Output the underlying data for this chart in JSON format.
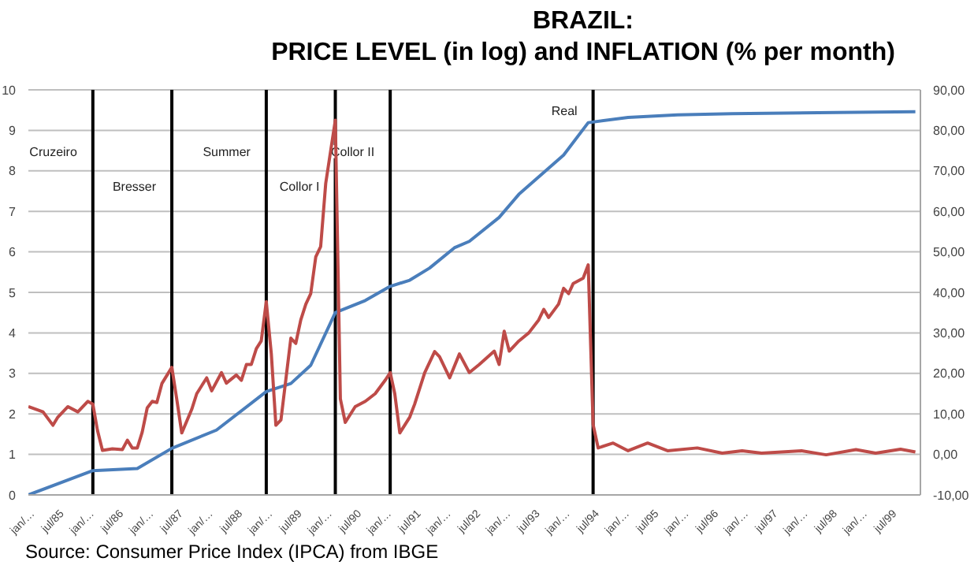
{
  "chart_data": {
    "type": "line",
    "title": "BRAZIL:",
    "subtitle": "PRICE LEVEL (in log) and INFLATION (% per month)",
    "annotations": [
      "Source: Consumer Price Index (IPCA) from IBGE"
    ],
    "xlim": [
      "1985-01",
      "2000-01"
    ],
    "xticks": [
      {
        "value": "1985-01",
        "label": "jan/…"
      },
      {
        "value": "1985-07",
        "label": "jul/85"
      },
      {
        "value": "1986-01",
        "label": "jan/…"
      },
      {
        "value": "1986-07",
        "label": "jul/86"
      },
      {
        "value": "1987-01",
        "label": "jan/…"
      },
      {
        "value": "1987-07",
        "label": "jul/87"
      },
      {
        "value": "1988-01",
        "label": "jan/…"
      },
      {
        "value": "1988-07",
        "label": "jul/88"
      },
      {
        "value": "1989-01",
        "label": "jan/…"
      },
      {
        "value": "1989-07",
        "label": "jul/89"
      },
      {
        "value": "1990-01",
        "label": "jan/…"
      },
      {
        "value": "1990-07",
        "label": "jul/90"
      },
      {
        "value": "1991-01",
        "label": "jan/…"
      },
      {
        "value": "1991-07",
        "label": "jul/91"
      },
      {
        "value": "1992-01",
        "label": "jan/…"
      },
      {
        "value": "1992-07",
        "label": "jul/92"
      },
      {
        "value": "1993-01",
        "label": "jan/…"
      },
      {
        "value": "1993-07",
        "label": "jul/93"
      },
      {
        "value": "1994-01",
        "label": "jan/…"
      },
      {
        "value": "1994-07",
        "label": "jul/94"
      },
      {
        "value": "1995-01",
        "label": "jan/…"
      },
      {
        "value": "1995-07",
        "label": "jul/95"
      },
      {
        "value": "1996-01",
        "label": "jan/…"
      },
      {
        "value": "1996-07",
        "label": "jul/96"
      },
      {
        "value": "1997-01",
        "label": "jan/…"
      },
      {
        "value": "1997-07",
        "label": "jul/97"
      },
      {
        "value": "1998-01",
        "label": "jan/…"
      },
      {
        "value": "1998-07",
        "label": "jul/98"
      },
      {
        "value": "1999-01",
        "label": "jan/…"
      },
      {
        "value": "1999-07",
        "label": "jul/99"
      }
    ],
    "ylim": [
      0,
      10
    ],
    "yticks": [
      0,
      1,
      2,
      3,
      4,
      5,
      6,
      7,
      8,
      9,
      10
    ],
    "y2lim": [
      -10,
      90
    ],
    "y2ticks": [
      {
        "value": -10,
        "label": "-10,00"
      },
      {
        "value": 0,
        "label": "0,00"
      },
      {
        "value": 10,
        "label": "10,00"
      },
      {
        "value": 20,
        "label": "20,00"
      },
      {
        "value": 30,
        "label": "30,00"
      },
      {
        "value": 40,
        "label": "40,00"
      },
      {
        "value": 50,
        "label": "50,00"
      },
      {
        "value": 60,
        "label": "60,00"
      },
      {
        "value": 70,
        "label": "70,00"
      },
      {
        "value": 80,
        "label": "80,00"
      },
      {
        "value": 90,
        "label": "90,00"
      }
    ],
    "grid": "y",
    "ref_lines": [
      {
        "axis": "x",
        "value": "1986-02",
        "label": "Cruzeiro",
        "color": "#000000"
      },
      {
        "axis": "x",
        "value": "1987-06",
        "label": "Bresser",
        "color": "#000000"
      },
      {
        "axis": "x",
        "value": "1989-01",
        "label": "Summer",
        "color": "#000000"
      },
      {
        "axis": "x",
        "value": "1990-03",
        "label": "Collor I",
        "color": "#000000"
      },
      {
        "axis": "x",
        "value": "1991-02",
        "label": "Collor II",
        "color": "#000000"
      },
      {
        "axis": "x",
        "value": "1994-07",
        "label": "Real",
        "color": "#000000"
      }
    ],
    "series": [
      {
        "type": "line",
        "color": "#4a7ebb",
        "x": [
          "1985-01",
          "1986-02",
          "1986-11",
          "1987-06",
          "1988-03",
          "1989-01",
          "1989-06",
          "1989-10",
          "1990-03",
          "1990-09",
          "1991-02",
          "1991-06",
          "1991-10",
          "1992-03",
          "1992-06",
          "1992-12",
          "1993-04",
          "1994-01",
          "1994-06",
          "1995-02",
          "1995-12",
          "1996-11",
          "1998-08",
          "1999-12"
        ],
        "values": [
          0,
          0.6,
          0.65,
          1.15,
          1.6,
          2.55,
          2.75,
          3.2,
          4.5,
          4.8,
          5.15,
          5.3,
          5.6,
          6.1,
          6.26,
          6.85,
          7.42,
          8.39,
          9.19,
          9.32,
          9.38,
          9.41,
          9.44,
          9.46
        ]
      },
      {
        "type": "line",
        "color": "#be4b48",
        "axis": "y2",
        "x": [
          "1985-01",
          "1985-04",
          "1985-06",
          "1985-07",
          "1985-09",
          "1985-11",
          "1986-01",
          "1986-02",
          "1986-03",
          "1986-04",
          "1986-06",
          "1986-08",
          "1986-09",
          "1986-10",
          "1986-11",
          "1986-12",
          "1987-01",
          "1987-02",
          "1987-03",
          "1987-04",
          "1987-06",
          "1987-07",
          "1987-08",
          "1987-10",
          "1987-11",
          "1988-01",
          "1988-02",
          "1988-04",
          "1988-05",
          "1988-07",
          "1988-08",
          "1988-09",
          "1988-10",
          "1988-11",
          "1988-12",
          "1989-01",
          "1989-02",
          "1989-03",
          "1989-04",
          "1989-06",
          "1989-07",
          "1989-08",
          "1989-09",
          "1989-10",
          "1989-11",
          "1989-12",
          "1990-01",
          "1990-03",
          "1990-04",
          "1990-05",
          "1990-07",
          "1990-09",
          "1990-11",
          "1991-01",
          "1991-02",
          "1991-03",
          "1991-04",
          "1991-06",
          "1991-07",
          "1991-09",
          "1991-11",
          "1991-12",
          "1992-02",
          "1992-04",
          "1992-06",
          "1992-08",
          "1992-11",
          "1992-12",
          "1993-01",
          "1993-02",
          "1993-04",
          "1993-06",
          "1993-08",
          "1993-09",
          "1993-10",
          "1993-12",
          "1994-01",
          "1994-02",
          "1994-03",
          "1994-05",
          "1994-06",
          "1994-07",
          "1994-08",
          "1994-11",
          "1995-02",
          "1995-06",
          "1995-10",
          "1996-04",
          "1996-09",
          "1997-01",
          "1997-05",
          "1998-01",
          "1998-06",
          "1998-12",
          "1999-04",
          "1999-09",
          "1999-12"
        ],
        "values": [
          11.8,
          10.5,
          7.2,
          9.2,
          11.8,
          10.5,
          13.1,
          12.4,
          6.0,
          1.0,
          1.4,
          1.2,
          3.5,
          1.6,
          1.6,
          5.5,
          11.5,
          13.1,
          12.8,
          17.5,
          21.5,
          13.7,
          5.3,
          11.1,
          15,
          18.9,
          15.7,
          20.2,
          17.6,
          19.6,
          18.3,
          22.2,
          22.2,
          26.1,
          28,
          37.7,
          24.8,
          7.2,
          8.5,
          28.7,
          27.4,
          33.2,
          37.1,
          39.7,
          48.8,
          51.3,
          66.9,
          82.5,
          13.7,
          7.9,
          11.8,
          13.1,
          15,
          18.3,
          20.2,
          15,
          5.3,
          9.2,
          12.4,
          20.2,
          25.4,
          24.1,
          18.9,
          24.8,
          20.2,
          22.2,
          25.5,
          22.2,
          30.4,
          25.5,
          28,
          30,
          33.2,
          35.8,
          33.8,
          37.1,
          41,
          39.7,
          42.2,
          43.5,
          46.8,
          7.4,
          1.6,
          2.8,
          0.9,
          2.8,
          0.9,
          1.6,
          0.3,
          0.9,
          0.3,
          0.9,
          -0.1,
          1.2,
          0.3,
          1.3,
          0.6
        ]
      }
    ]
  }
}
